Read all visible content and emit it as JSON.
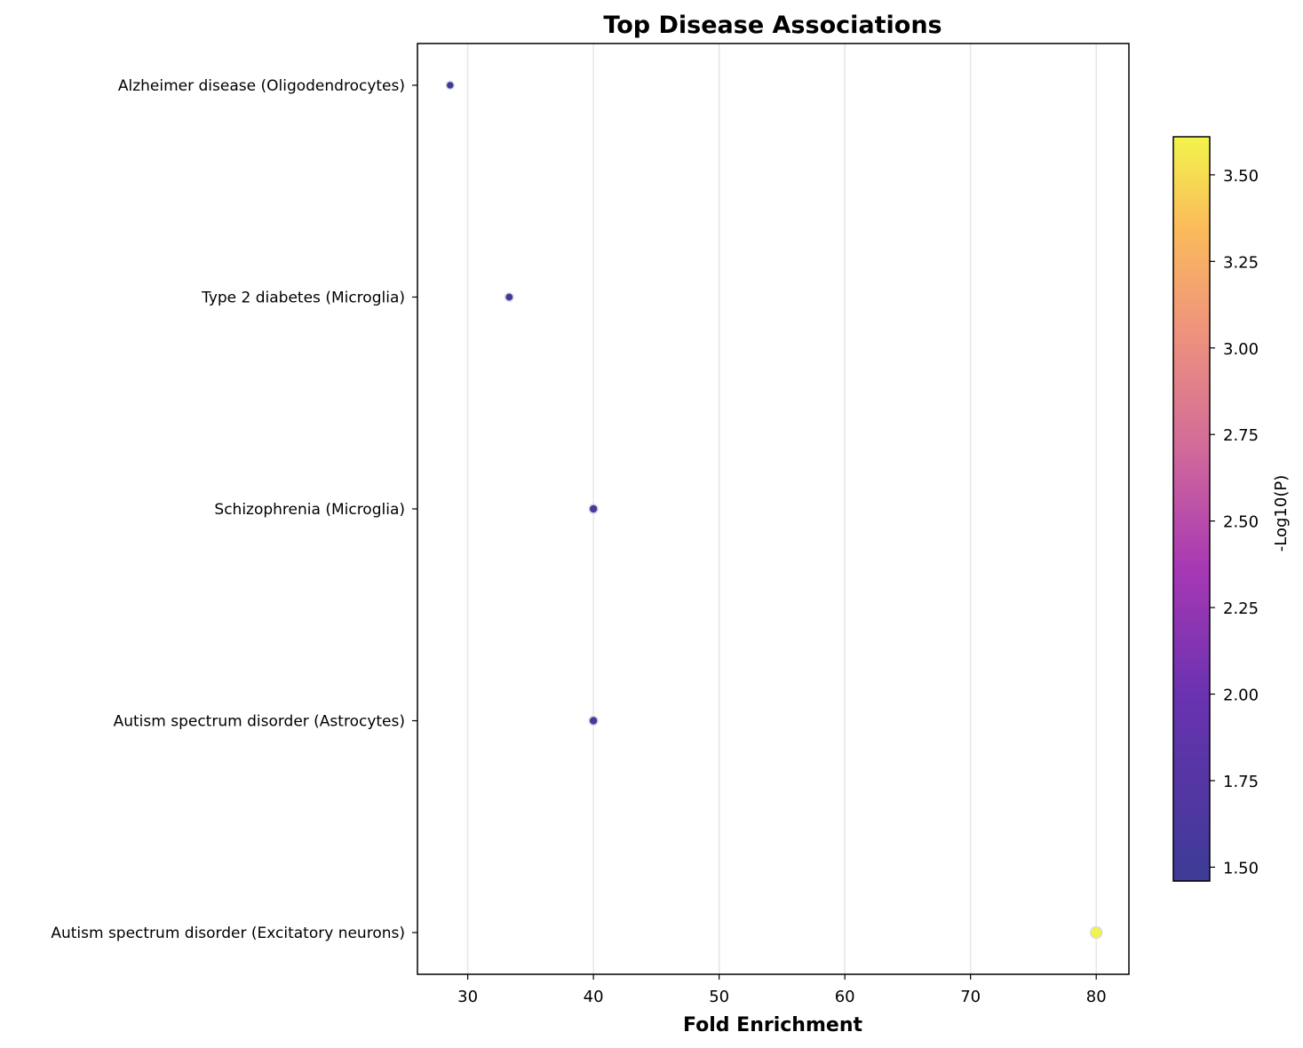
{
  "chart_data": {
    "type": "scatter",
    "title": "Top Disease Associations",
    "xlabel": "Fold Enrichment",
    "ylabel": "",
    "xlim": [
      26,
      82.6
    ],
    "xticks": [
      30,
      40,
      50,
      60,
      70,
      80
    ],
    "grid": "vertical",
    "categories": [
      "Alzheimer disease (Oligodendrocytes)",
      "Type 2 diabetes (Microglia)",
      "Schizophrenia (Microglia)",
      "Autism spectrum disorder (Astrocytes)",
      "Autism spectrum disorder (Excitatory neurons)"
    ],
    "points": [
      {
        "category": "Alzheimer disease (Oligodendrocytes)",
        "x": 28.6,
        "neg_log10_p": 1.46
      },
      {
        "category": "Type 2 diabetes (Microglia)",
        "x": 33.3,
        "neg_log10_p": 1.52
      },
      {
        "category": "Schizophrenia (Microglia)",
        "x": 40.0,
        "neg_log10_p": 1.6
      },
      {
        "category": "Autism spectrum disorder (Astrocytes)",
        "x": 40.0,
        "neg_log10_p": 1.6
      },
      {
        "category": "Autism spectrum disorder (Excitatory neurons)",
        "x": 80.0,
        "neg_log10_p": 3.6
      }
    ],
    "colorbar": {
      "label": "-Log10(P)",
      "colormap": "plasma",
      "range": [
        1.46,
        3.61
      ],
      "ticks": [
        1.5,
        1.75,
        2.0,
        2.25,
        2.5,
        2.75,
        3.0,
        3.25,
        3.5
      ],
      "tick_labels": [
        "1.50",
        "1.75",
        "2.00",
        "2.25",
        "2.50",
        "2.75",
        "3.00",
        "3.25",
        "3.50"
      ]
    },
    "colors": {
      "axis": "#000000",
      "grid": "#e6e6e6",
      "marker_edge": "#d9d9e6"
    }
  }
}
